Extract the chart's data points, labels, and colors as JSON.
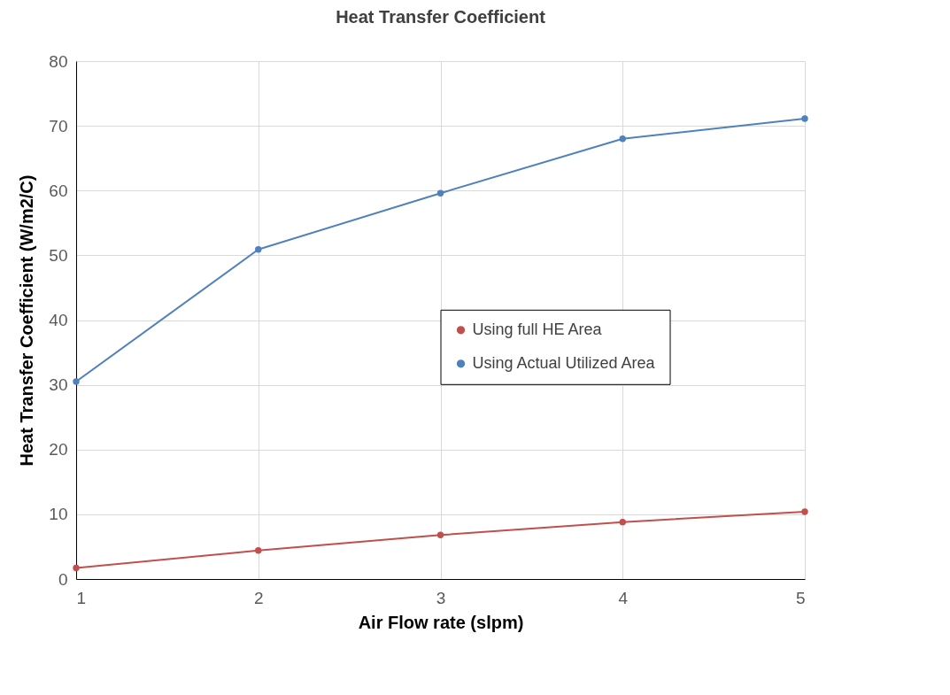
{
  "chart_data": {
    "type": "line",
    "title": "Heat Transfer Coefficient",
    "xlabel": "Air Flow rate (slpm)",
    "ylabel": "Heat Transfer Coefficient (W/m2/C)",
    "x": [
      1,
      2,
      3,
      4,
      5
    ],
    "series": [
      {
        "name": "Using full HE Area",
        "color": "#c0504d",
        "values": [
          1.7,
          4.4,
          6.8,
          8.8,
          10.4
        ]
      },
      {
        "name": "Using Actual Utilized Area",
        "color": "#4f81bd",
        "values": [
          30.5,
          50.9,
          59.6,
          68.0,
          71.1
        ]
      }
    ],
    "xlim": [
      1,
      5
    ],
    "xticks": [
      1,
      2,
      3,
      4,
      5
    ],
    "ylim": [
      0,
      80
    ],
    "yticks": [
      0,
      10,
      20,
      30,
      40,
      50,
      60,
      70,
      80
    ],
    "grid": true,
    "legend": "right",
    "marker": "circle",
    "line_style": "solid"
  }
}
